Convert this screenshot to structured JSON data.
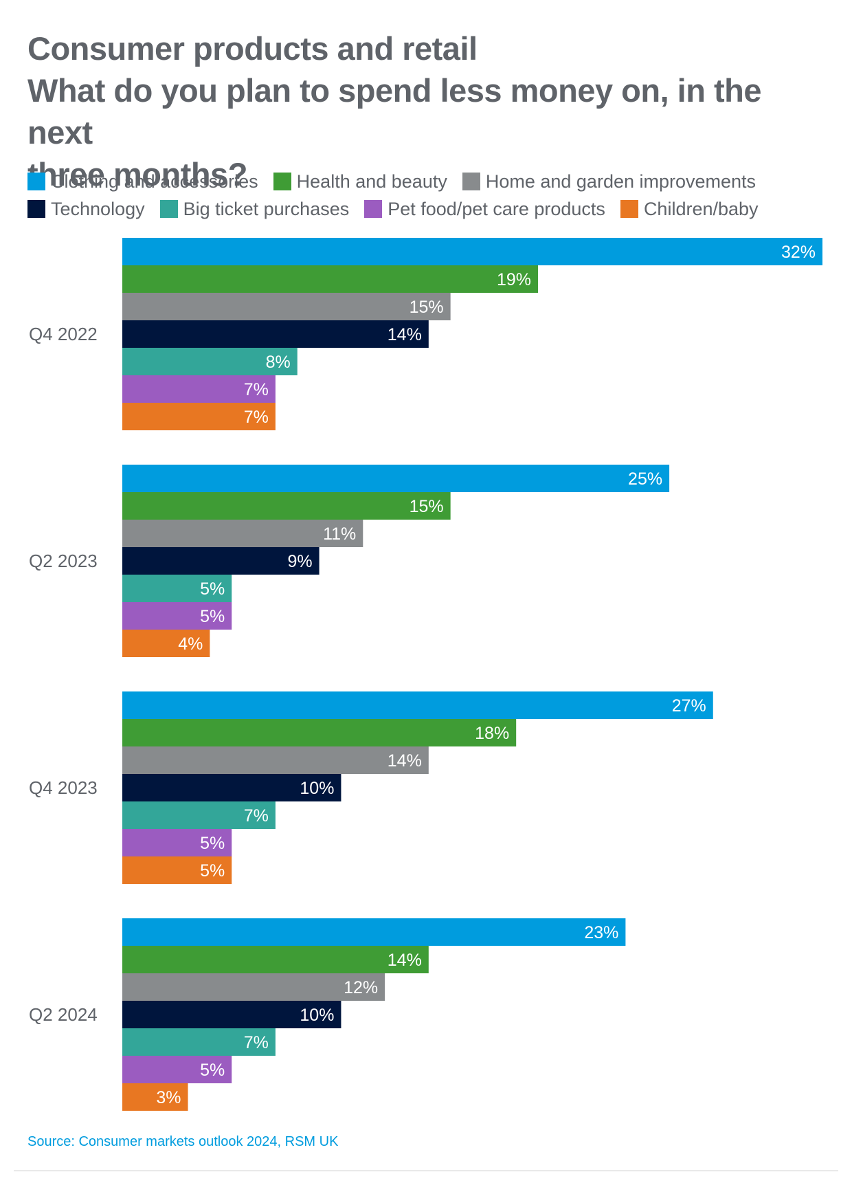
{
  "title": {
    "line1": "Consumer products and retail",
    "line2": "What do you plan to spend less money on, in the next",
    "line3": "three months?"
  },
  "source": "Source: Consumer markets outlook 2024, RSM UK",
  "chart_data": {
    "type": "bar",
    "orientation": "horizontal",
    "title": "Consumer products and retail — What do you plan to spend less money on, in the next three months?",
    "categories": [
      "Q4 2022",
      "Q2 2023",
      "Q4 2023",
      "Q2 2024"
    ],
    "value_suffix": "%",
    "xlim": [
      0,
      32
    ],
    "series": [
      {
        "name": "Clothing and accessories",
        "color": "#009cde",
        "values": [
          32,
          25,
          27,
          23
        ],
        "labels": [
          "32%",
          "25%",
          "27%",
          "23%"
        ]
      },
      {
        "name": "Health and beauty",
        "color": "#3f9c35",
        "values": [
          19,
          15,
          18,
          14
        ],
        "labels": [
          "19%",
          "15%",
          "18%",
          "14%"
        ]
      },
      {
        "name": "Home and garden improvements",
        "color": "#888b8d",
        "values": [
          15,
          11,
          14,
          12
        ],
        "labels": [
          "15%",
          "11%",
          "14%",
          "12%"
        ]
      },
      {
        "name": "Technology",
        "color": "#00153d",
        "values": [
          14,
          9,
          10,
          10
        ],
        "labels": [
          "14%",
          "9%",
          "10%",
          "10%"
        ]
      },
      {
        "name": "Big ticket purchases",
        "color": "#33a699",
        "values": [
          8,
          5,
          7,
          7
        ],
        "labels": [
          "8%",
          "5%",
          "7%",
          "7%"
        ]
      },
      {
        "name": "Pet food/pet care products",
        "color": "#9b5cc0",
        "values": [
          7,
          5,
          5,
          5
        ],
        "labels": [
          "7%",
          "5%",
          "5%",
          "5%"
        ]
      },
      {
        "name": "Children/baby",
        "color": "#e87722",
        "values": [
          7,
          4,
          5,
          3
        ],
        "labels": [
          "7%",
          "4%",
          "5%",
          "3%"
        ]
      }
    ],
    "legend_position": "top",
    "grid": false
  }
}
